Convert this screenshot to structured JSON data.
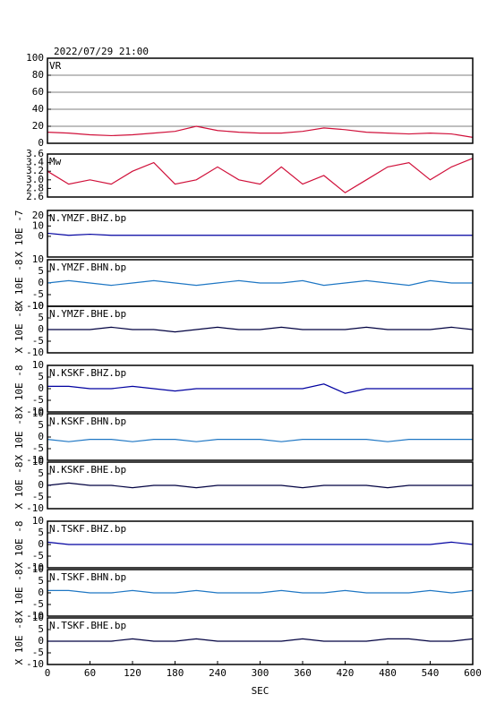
{
  "chart_data": [
    {
      "type": "line",
      "title": "2022/07/29 21:00",
      "label": "VR",
      "xlim": [
        0,
        600
      ],
      "ylim": [
        0,
        100
      ],
      "yticks": [
        0,
        20,
        40,
        60,
        80,
        100
      ],
      "grid": true,
      "x": [
        0,
        30,
        60,
        90,
        120,
        150,
        180,
        210,
        240,
        270,
        300,
        330,
        360,
        390,
        420,
        450,
        480,
        510,
        540,
        570,
        600
      ],
      "series": [
        {
          "color": "#d0103a",
          "values": [
            13,
            12,
            10,
            9,
            10,
            12,
            14,
            20,
            15,
            13,
            12,
            12,
            14,
            18,
            16,
            13,
            12,
            11,
            12,
            11,
            7
          ]
        }
      ]
    },
    {
      "type": "line",
      "label": "Mw",
      "xlim": [
        0,
        600
      ],
      "ylim": [
        2.6,
        3.6
      ],
      "yticks": [
        2.6,
        2.8,
        {
          "value": 3,
          "label": "3.0"
        },
        3.2,
        3.4,
        3.6
      ],
      "grid": false,
      "x": [
        0,
        30,
        60,
        90,
        120,
        150,
        180,
        210,
        240,
        270,
        300,
        330,
        360,
        390,
        420,
        450,
        480,
        510,
        540,
        570,
        600
      ],
      "series": [
        {
          "color": "#d0103a",
          "values": [
            3.2,
            2.9,
            3.0,
            2.9,
            3.2,
            3.4,
            2.9,
            3.0,
            3.3,
            3.0,
            2.9,
            3.3,
            2.9,
            3.1,
            2.7,
            3.0,
            3.3,
            3.4,
            3.0,
            3.3,
            3.5
          ]
        }
      ]
    },
    {
      "type": "line",
      "label": "N.YMZF.BHZ.bp",
      "ylabel": "X 10E -7",
      "xlim": [
        0,
        600
      ],
      "ylim": [
        -20,
        25
      ],
      "yticks": [
        0,
        10,
        20
      ],
      "grid": false,
      "x": [
        0,
        30,
        60,
        90,
        120,
        150,
        180,
        210,
        240,
        270,
        300,
        330,
        360,
        390,
        420,
        450,
        480,
        510,
        540,
        570,
        600
      ],
      "series": [
        {
          "color": "#0000a0",
          "values": [
            3,
            1,
            2,
            1,
            1,
            1,
            1,
            1,
            1,
            1,
            1,
            1,
            1,
            1,
            1,
            1,
            1,
            1,
            1,
            1,
            1
          ]
        }
      ]
    },
    {
      "type": "line",
      "label": "N.YMZF.BHN.bp",
      "ylabel": "X 10E -8",
      "xlim": [
        0,
        600
      ],
      "ylim": [
        -10,
        10
      ],
      "yticks": [
        -10,
        -5,
        0,
        5,
        10
      ],
      "grid": false,
      "x": [
        0,
        30,
        60,
        90,
        120,
        150,
        180,
        210,
        240,
        270,
        300,
        330,
        360,
        390,
        420,
        450,
        480,
        510,
        540,
        570,
        600
      ],
      "series": [
        {
          "color": "#1f77c4",
          "values": [
            0,
            1,
            0,
            -1,
            0,
            1,
            0,
            -1,
            0,
            1,
            0,
            0,
            1,
            -1,
            0,
            1,
            0,
            -1,
            1,
            0,
            0
          ]
        }
      ]
    },
    {
      "type": "line",
      "label": "N.YMZF.BHE.bp",
      "ylabel": "X 10E -8",
      "xlim": [
        0,
        600
      ],
      "ylim": [
        -10,
        10
      ],
      "yticks": [
        -10,
        -5,
        0,
        5,
        10
      ],
      "grid": false,
      "x": [
        0,
        30,
        60,
        90,
        120,
        150,
        180,
        210,
        240,
        270,
        300,
        330,
        360,
        390,
        420,
        450,
        480,
        510,
        540,
        570,
        600
      ],
      "series": [
        {
          "color": "#000040",
          "values": [
            0,
            0,
            0,
            1,
            0,
            0,
            -1,
            0,
            1,
            0,
            0,
            1,
            0,
            0,
            0,
            1,
            0,
            0,
            0,
            1,
            0
          ]
        }
      ]
    },
    {
      "type": "line",
      "label": "N.KSKF.BHZ.bp",
      "ylabel": "X 10E -8",
      "xlim": [
        0,
        600
      ],
      "ylim": [
        -10,
        10
      ],
      "yticks": [
        -10,
        -5,
        0,
        5,
        10
      ],
      "grid": false,
      "x": [
        0,
        30,
        60,
        90,
        120,
        150,
        180,
        210,
        240,
        270,
        300,
        330,
        360,
        390,
        420,
        450,
        480,
        510,
        540,
        570,
        600
      ],
      "series": [
        {
          "color": "#0000a0",
          "values": [
            1,
            1,
            0,
            0,
            1,
            0,
            -1,
            0,
            0,
            0,
            0,
            0,
            0,
            2,
            -2,
            0,
            0,
            0,
            0,
            0,
            0
          ]
        }
      ]
    },
    {
      "type": "line",
      "label": "N.KSKF.BHN.bp",
      "ylabel": "X 10E -8",
      "xlim": [
        0,
        600
      ],
      "ylim": [
        -10,
        10
      ],
      "yticks": [
        -10,
        -5,
        0,
        5,
        10
      ],
      "grid": false,
      "x": [
        0,
        30,
        60,
        90,
        120,
        150,
        180,
        210,
        240,
        270,
        300,
        330,
        360,
        390,
        420,
        450,
        480,
        510,
        540,
        570,
        600
      ],
      "series": [
        {
          "color": "#1f77c4",
          "values": [
            -1,
            -2,
            -1,
            -1,
            -2,
            -1,
            -1,
            -2,
            -1,
            -1,
            -1,
            -2,
            -1,
            -1,
            -1,
            -1,
            -2,
            -1,
            -1,
            -1,
            -1
          ]
        }
      ]
    },
    {
      "type": "line",
      "label": "N.KSKF.BHE.bp",
      "ylabel": "X 10E -8",
      "xlim": [
        0,
        600
      ],
      "ylim": [
        -10,
        10
      ],
      "yticks": [
        -10,
        -5,
        0,
        5,
        10
      ],
      "grid": false,
      "x": [
        0,
        30,
        60,
        90,
        120,
        150,
        180,
        210,
        240,
        270,
        300,
        330,
        360,
        390,
        420,
        450,
        480,
        510,
        540,
        570,
        600
      ],
      "series": [
        {
          "color": "#000040",
          "values": [
            0,
            1,
            0,
            0,
            -1,
            0,
            0,
            -1,
            0,
            0,
            0,
            0,
            -1,
            0,
            0,
            0,
            -1,
            0,
            0,
            0,
            0
          ]
        }
      ]
    },
    {
      "type": "line",
      "label": "N.TSKF.BHZ.bp",
      "ylabel": "X 10E -8",
      "xlim": [
        0,
        600
      ],
      "ylim": [
        -10,
        10
      ],
      "yticks": [
        -10,
        -5,
        0,
        5,
        10
      ],
      "grid": false,
      "x": [
        0,
        30,
        60,
        90,
        120,
        150,
        180,
        210,
        240,
        270,
        300,
        330,
        360,
        390,
        420,
        450,
        480,
        510,
        540,
        570,
        600
      ],
      "series": [
        {
          "color": "#0000a0",
          "values": [
            1,
            0,
            0,
            0,
            0,
            0,
            0,
            0,
            0,
            0,
            0,
            0,
            0,
            0,
            0,
            0,
            0,
            0,
            0,
            1,
            0
          ]
        }
      ]
    },
    {
      "type": "line",
      "label": "N.TSKF.BHN.bp",
      "ylabel": "X 10E -8",
      "xlim": [
        0,
        600
      ],
      "ylim": [
        -10,
        10
      ],
      "yticks": [
        -10,
        -5,
        0,
        5,
        10
      ],
      "grid": false,
      "x": [
        0,
        30,
        60,
        90,
        120,
        150,
        180,
        210,
        240,
        270,
        300,
        330,
        360,
        390,
        420,
        450,
        480,
        510,
        540,
        570,
        600
      ],
      "series": [
        {
          "color": "#1f77c4",
          "values": [
            1,
            1,
            0,
            0,
            1,
            0,
            0,
            1,
            0,
            0,
            0,
            1,
            0,
            0,
            1,
            0,
            0,
            0,
            1,
            0,
            1
          ]
        }
      ]
    },
    {
      "type": "line",
      "label": "N.TSKF.BHE.bp",
      "ylabel": "X 10E -8",
      "xlabel": "SEC",
      "xlim": [
        0,
        600
      ],
      "ylim": [
        -10,
        10
      ],
      "yticks": [
        -10,
        -5,
        0,
        5,
        10
      ],
      "xticks": [
        0,
        60,
        120,
        180,
        240,
        300,
        360,
        420,
        480,
        540,
        600
      ],
      "grid": false,
      "x": [
        0,
        30,
        60,
        90,
        120,
        150,
        180,
        210,
        240,
        270,
        300,
        330,
        360,
        390,
        420,
        450,
        480,
        510,
        540,
        570,
        600
      ],
      "series": [
        {
          "color": "#000040",
          "values": [
            0,
            0,
            0,
            0,
            1,
            0,
            0,
            1,
            0,
            0,
            0,
            0,
            1,
            0,
            0,
            0,
            1,
            1,
            0,
            0,
            1
          ]
        }
      ]
    }
  ]
}
